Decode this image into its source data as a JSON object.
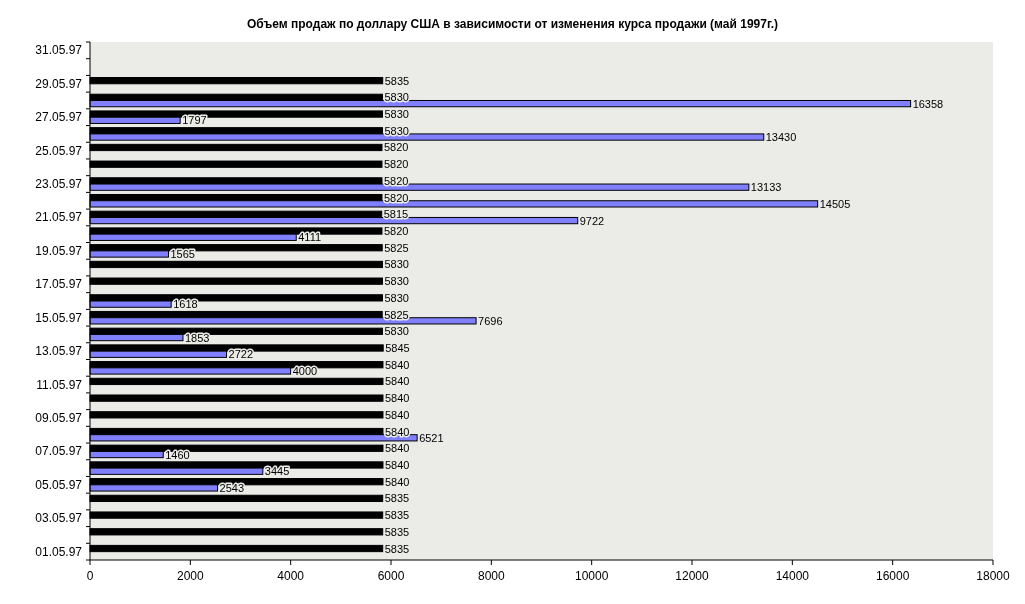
{
  "chart_data": {
    "type": "bar",
    "orientation": "horizontal",
    "title": "Объем продаж по доллару США в зависимости от изменения курса продажи (май 1997г.)",
    "categories": [
      "31.05.97",
      null,
      "29.05.97",
      null,
      "27.05.97",
      null,
      "25.05.97",
      null,
      "23.05.97",
      null,
      "21.05.97",
      null,
      "19.05.97",
      null,
      "17.05.97",
      null,
      "15.05.97",
      null,
      "13.05.97",
      null,
      "11.05.97",
      null,
      "09.05.97",
      null,
      "07.05.97",
      null,
      "05.05.97",
      null,
      "03.05.97",
      null,
      "01.05.97"
    ],
    "series": [
      {
        "color": "#000000",
        "values": [
          null,
          null,
          5835,
          5830,
          5830,
          5830,
          5820,
          5820,
          5820,
          5820,
          5815,
          5820,
          5825,
          5830,
          5830,
          5830,
          5825,
          5830,
          5845,
          5840,
          5840,
          5840,
          5840,
          5840,
          5840,
          5840,
          5840,
          5835,
          5835,
          5835,
          5835
        ]
      },
      {
        "color": "#8080ff",
        "values": [
          null,
          null,
          null,
          16358,
          1797,
          13430,
          null,
          null,
          13133,
          14505,
          9722,
          4111,
          1565,
          null,
          null,
          1618,
          7696,
          1853,
          2722,
          4000,
          null,
          null,
          null,
          6521,
          1460,
          3445,
          2543,
          null,
          null,
          null,
          null
        ]
      }
    ],
    "xlim": [
      0,
      18000
    ],
    "xticks": [
      0,
      2000,
      4000,
      6000,
      8000,
      10000,
      12000,
      14000,
      16000,
      18000
    ],
    "data_labels": true,
    "grid": false
  }
}
